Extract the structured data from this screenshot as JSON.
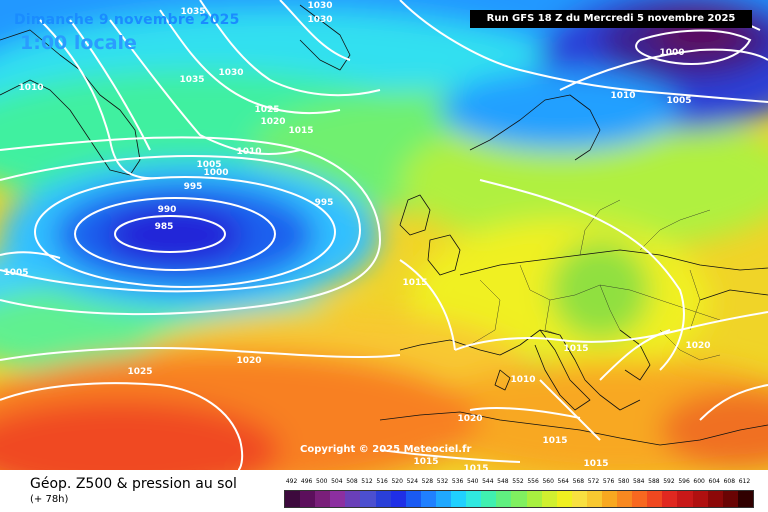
{
  "header": {
    "date": "Dimanche 9 novembre 2025",
    "local_time": "1:00 locale",
    "run": "Run GFS 18 Z du Mercredi 5 novembre 2025"
  },
  "copyright": "Copyright © 2025 Meteociel.fr",
  "footer": {
    "parameter": "Géop. Z500 & pression au sol",
    "lead_time": "(+ 78h)"
  },
  "color_scale": {
    "labels": [
      "492",
      "496",
      "500",
      "504",
      "508",
      "512",
      "516",
      "520",
      "524",
      "528",
      "532",
      "536",
      "540",
      "544",
      "548",
      "552",
      "556",
      "560",
      "564",
      "568",
      "572",
      "576",
      "580",
      "584",
      "588",
      "592",
      "596",
      "600",
      "604",
      "608",
      "612"
    ],
    "colors": [
      "#3d0a3d",
      "#5c0f5c",
      "#7a1f7a",
      "#8c2fa0",
      "#6a3fb8",
      "#4c4fcf",
      "#2a3fd8",
      "#1f2fe6",
      "#1a5af2",
      "#2080ff",
      "#20a8ff",
      "#20d0ff",
      "#30e8e0",
      "#40f0b0",
      "#60f080",
      "#80f060",
      "#a8f040",
      "#d0f030",
      "#f0f020",
      "#f8e040",
      "#f8c830",
      "#f8a820",
      "#f88820",
      "#f86820",
      "#f04820",
      "#e02820",
      "#c81818",
      "#b01010",
      "#8c0808",
      "#6a0404",
      "#300000"
    ]
  },
  "isobars": [
    {
      "value": "1035"
    },
    {
      "value": "1030"
    },
    {
      "value": "1030"
    },
    {
      "value": "1010"
    },
    {
      "value": "1035"
    },
    {
      "value": "1030"
    },
    {
      "value": "1025"
    },
    {
      "value": "1020"
    },
    {
      "value": "1015"
    },
    {
      "value": "1010"
    },
    {
      "value": "1005"
    },
    {
      "value": "1000"
    },
    {
      "value": "995"
    },
    {
      "value": "995"
    },
    {
      "value": "990"
    },
    {
      "value": "985"
    },
    {
      "value": "1005"
    },
    {
      "value": "1015"
    },
    {
      "value": "1020"
    },
    {
      "value": "1025"
    },
    {
      "value": "1020"
    },
    {
      "value": "1015"
    },
    {
      "value": "1010"
    },
    {
      "value": "1015"
    },
    {
      "value": "1015"
    },
    {
      "value": "1015"
    },
    {
      "value": "1015"
    },
    {
      "value": "1020"
    },
    {
      "value": "1000"
    },
    {
      "value": "1010"
    },
    {
      "value": "1005"
    }
  ]
}
